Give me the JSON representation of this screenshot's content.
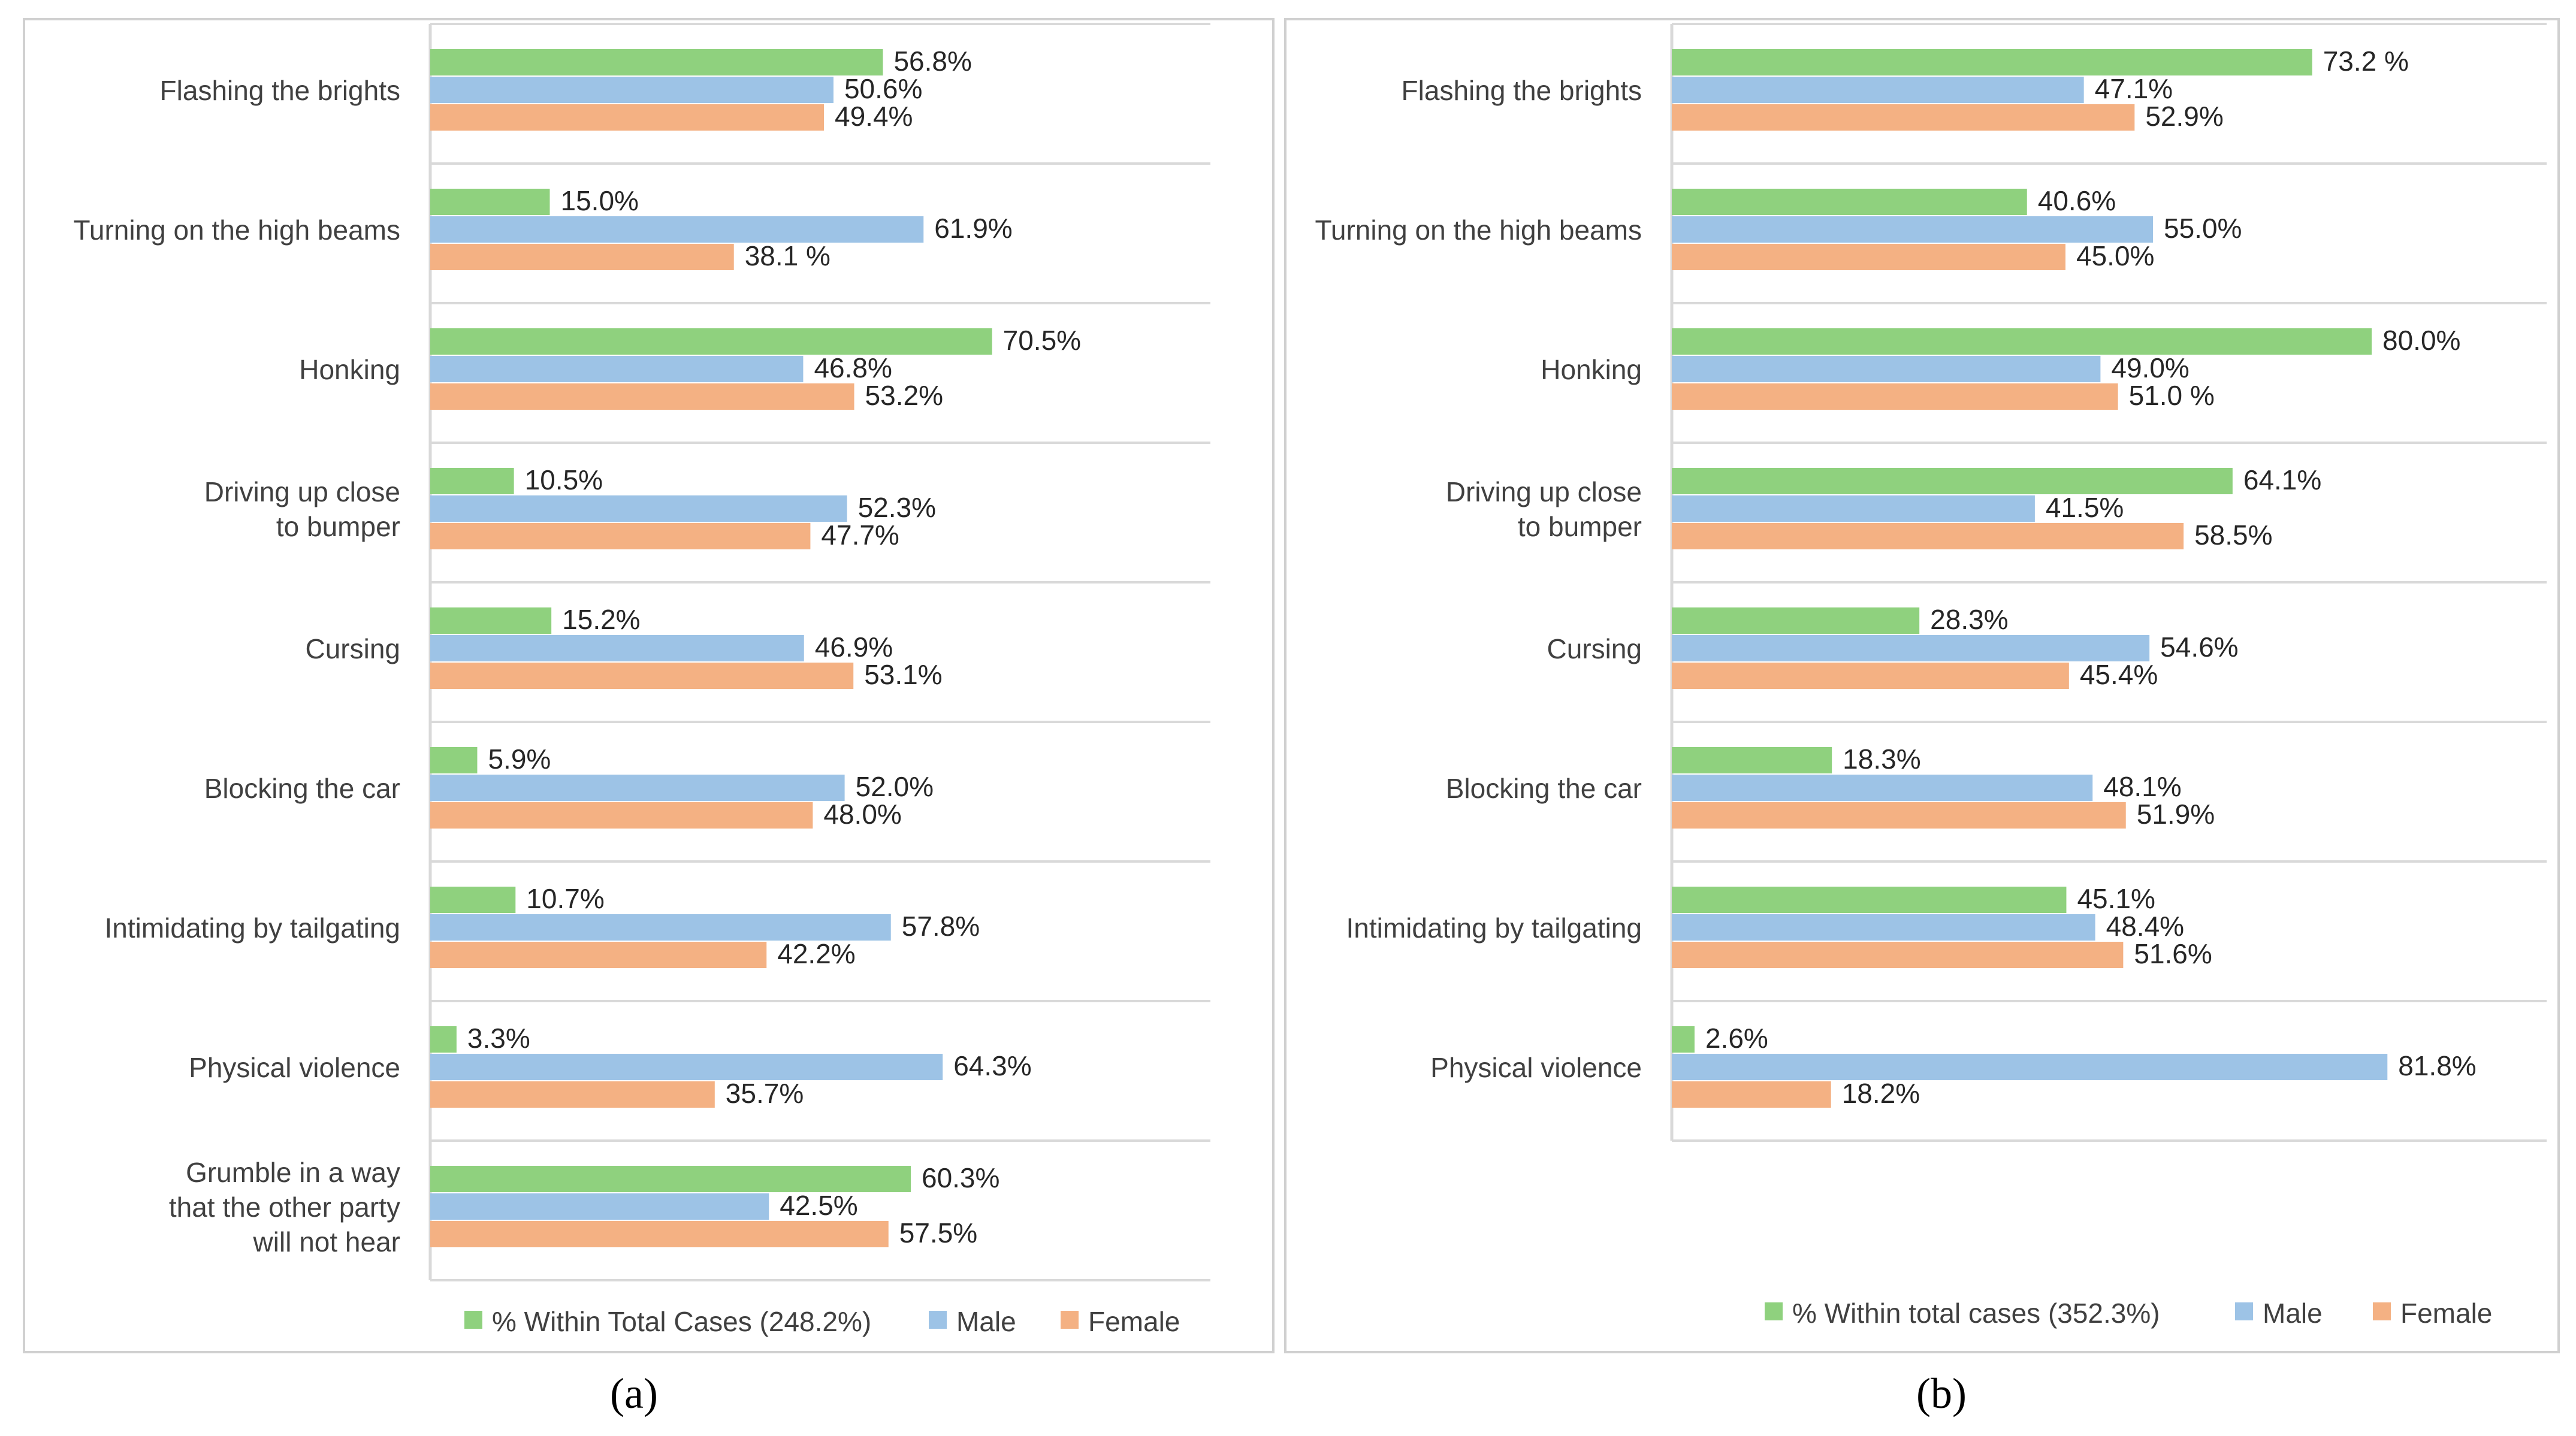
{
  "colors": {
    "total": "#8fd17e",
    "male": "#9dc3e6",
    "female": "#f4b183"
  },
  "chart_data": [
    {
      "type": "bar",
      "orientation": "horizontal",
      "panel": "(a)",
      "categories": [
        "Flashing the brights",
        "Turning on the high beams",
        "Honking",
        "Driving up close to bumper",
        "Cursing",
        "Blocking the car",
        "Intimidating by tailgating",
        "Physical violence",
        "Grumble in a way that the other party will not hear"
      ],
      "category_lines": [
        [
          "Flashing the brights"
        ],
        [
          "Turning on the high beams"
        ],
        [
          "Honking"
        ],
        [
          "Driving    up   close",
          "to   bumper"
        ],
        [
          "Cursing"
        ],
        [
          "Blocking the car"
        ],
        [
          "Intimidating by tailgating"
        ],
        [
          "Physical violence"
        ],
        [
          "Grumble    in    a    way",
          "that    the    other  party",
          "will not hear"
        ]
      ],
      "series": [
        {
          "name": "% Within Total Cases (248.2%)",
          "key": "total",
          "values": [
            56.8,
            15.0,
            70.5,
            10.5,
            15.2,
            5.9,
            10.7,
            3.3,
            60.3
          ],
          "labels": [
            "56.8%",
            "15.0%",
            "70.5%",
            "10.5%",
            "15.2%",
            "5.9%",
            "10.7%",
            "3.3%",
            "60.3%"
          ]
        },
        {
          "name": "Male",
          "key": "male",
          "values": [
            50.6,
            61.9,
            46.8,
            52.3,
            46.9,
            52.0,
            57.8,
            64.3,
            42.5
          ],
          "labels": [
            "50.6%",
            "61.9%",
            "46.8%",
            "52.3%",
            "46.9%",
            "52.0%",
            "57.8%",
            "64.3%",
            "42.5%"
          ]
        },
        {
          "name": "Female",
          "key": "female",
          "values": [
            49.4,
            38.1,
            53.2,
            47.7,
            53.1,
            48.0,
            42.2,
            35.7,
            57.5
          ],
          "labels": [
            "49.4%",
            "38.1 %",
            "53.2%",
            "47.7%",
            "53.1%",
            "48.0%",
            "42.2%",
            "35.7%",
            "57.5%"
          ]
        }
      ],
      "legend": [
        "% Within Total Cases (248.2%)",
        "Male",
        "Female"
      ],
      "legend_position": "bottom"
    },
    {
      "type": "bar",
      "orientation": "horizontal",
      "panel": "(b)",
      "categories": [
        "Flashing the brights",
        "Turning on the high beams",
        "Honking",
        "Driving up close to bumper",
        "Cursing",
        "Blocking the car",
        "Intimidating by tailgating",
        "Physical violence"
      ],
      "category_lines": [
        [
          "Flashing the brights"
        ],
        [
          "Turning on the high beams"
        ],
        [
          "Honking"
        ],
        [
          "Driving    up   close",
          "to   bumper"
        ],
        [
          "Cursing"
        ],
        [
          "Blocking the car"
        ],
        [
          "Intimidating by tailgating"
        ],
        [
          "Physical violence"
        ]
      ],
      "series": [
        {
          "name": "% Within total cases (352.3%)",
          "key": "total",
          "values": [
            73.2,
            40.6,
            80.0,
            64.1,
            28.3,
            18.3,
            45.1,
            2.6
          ],
          "labels": [
            "73.2   %",
            "40.6%",
            "80.0%",
            "64.1%",
            "28.3%",
            "18.3%",
            "45.1%",
            "2.6%"
          ]
        },
        {
          "name": "Male",
          "key": "male",
          "values": [
            47.1,
            55.0,
            49.0,
            41.5,
            54.6,
            48.1,
            48.4,
            81.8
          ],
          "labels": [
            "47.1%",
            "55.0%",
            "49.0%",
            "41.5%",
            "54.6%",
            "48.1%",
            "48.4%",
            "81.8%"
          ]
        },
        {
          "name": "Female",
          "key": "female",
          "values": [
            52.9,
            45.0,
            51.0,
            58.5,
            45.4,
            51.9,
            51.6,
            18.2
          ],
          "labels": [
            "52.9%",
            "45.0%",
            "51.0   %",
            "58.5%",
            "45.4%",
            "51.9%",
            "51.6%",
            "18.2%"
          ]
        }
      ],
      "legend": [
        "% Within total cases (352.3%)",
        "Male",
        "Female"
      ],
      "legend_position": "bottom"
    }
  ]
}
